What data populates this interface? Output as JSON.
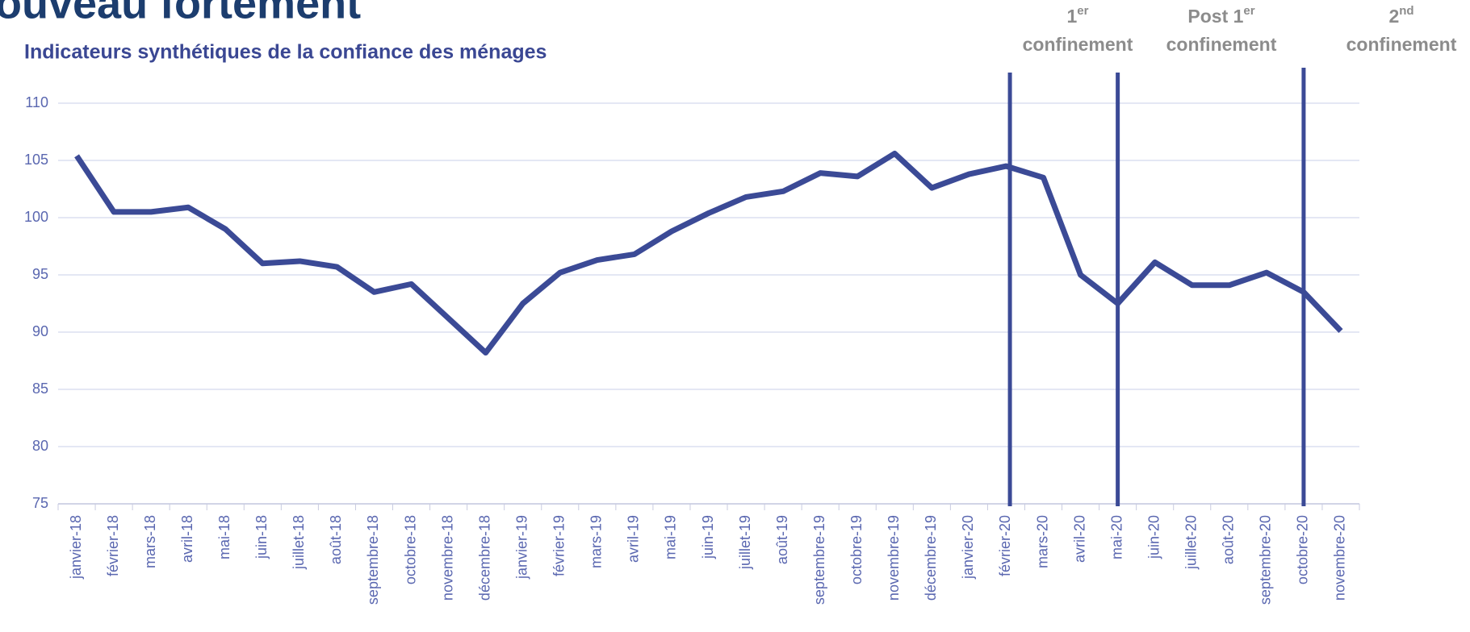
{
  "chart_data": {
    "type": "line",
    "title": "ouveau fortement",
    "subtitle": "Indicateurs synthétiques de la confiance des ménages",
    "annotations": [
      {
        "number": "1",
        "sup": "er",
        "word": "confinement"
      },
      {
        "number": "Post 1",
        "sup": "er",
        "word": "confinement"
      },
      {
        "number": "2",
        "sup": "nd",
        "word": "confinement"
      }
    ],
    "categories": [
      "janvier-18",
      "février-18",
      "mars-18",
      "avril-18",
      "mai-18",
      "juin-18",
      "juillet-18",
      "août-18",
      "septembre-18",
      "octobre-18",
      "novembre-18",
      "décembre-18",
      "janvier-19",
      "février-19",
      "mars-19",
      "avril-19",
      "mai-19",
      "juin-19",
      "juillet-19",
      "août-19",
      "septembre-19",
      "octobre-19",
      "novembre-19",
      "décembre-19",
      "janvier-20",
      "février-20",
      "mars-20",
      "avril-20",
      "mai-20",
      "juin-20",
      "juillet-20",
      "août-20",
      "septembre-20",
      "octobre-20",
      "novembre-20"
    ],
    "series": [
      {
        "color": "#3b4a96",
        "values": [
          105.4,
          100.5,
          100.5,
          100.9,
          99,
          96,
          96.2,
          95.7,
          93.5,
          94.2,
          91.2,
          88.2,
          92.5,
          95.2,
          96.3,
          96.8,
          98.8,
          100.4,
          101.8,
          102.3,
          103.9,
          103.6,
          105.6,
          102.6,
          103.8,
          104.5,
          103.5,
          95,
          92.5,
          96.1,
          94.1,
          94.1,
          95.2,
          93.5,
          90.1
        ]
      }
    ],
    "ylim": [
      75,
      110
    ],
    "yticks": [
      75,
      80,
      85,
      90,
      95,
      100,
      105,
      110
    ],
    "grid": true
  }
}
